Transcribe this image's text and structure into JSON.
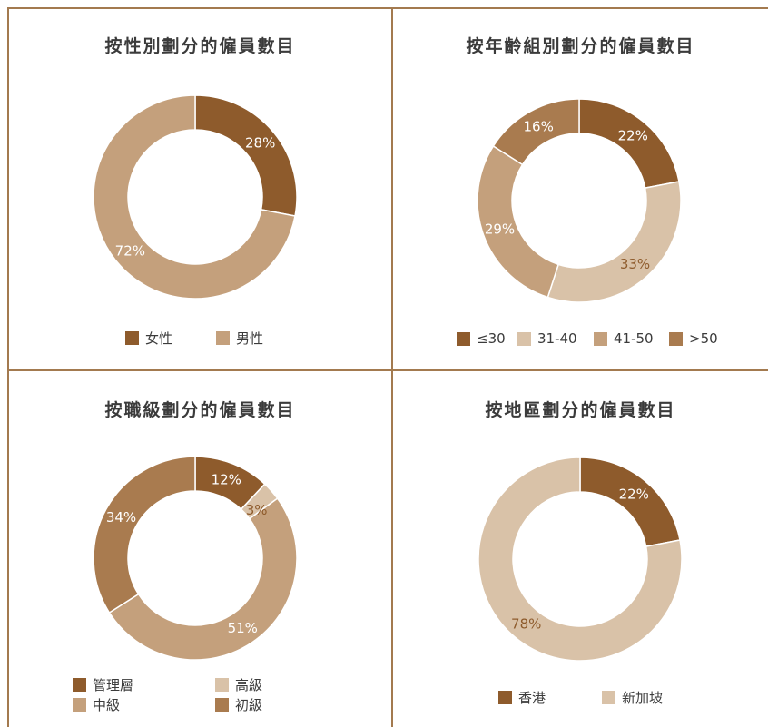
{
  "colors": {
    "frame": "#a37a4f",
    "slice_dark": "#8e5b2c",
    "slice_mid": "#c4a07c",
    "slice_light": "#d9c2a8",
    "slice_brown": "#a97b4f",
    "label_dark": "#8e5b2c",
    "label_light": "#ffffff"
  },
  "chart_data": [
    {
      "type": "pie",
      "title": "按性別劃分的僱員數目",
      "slices": [
        {
          "label": "女性",
          "value": 28,
          "display": "28%",
          "color": "#8e5b2c",
          "label_color": "#ffffff"
        },
        {
          "label": "男性",
          "value": 72,
          "display": "72%",
          "color": "#c4a07c",
          "label_color": "#ffffff"
        }
      ]
    },
    {
      "type": "pie",
      "title": "按年齡組別劃分的僱員數目",
      "slices": [
        {
          "label": "≤30",
          "value": 22,
          "display": "22%",
          "color": "#8e5b2c",
          "label_color": "#ffffff"
        },
        {
          "label": "31-40",
          "value": 33,
          "display": "33%",
          "color": "#d9c2a8",
          "label_color": "#8e5b2c"
        },
        {
          "label": "41-50",
          "value": 29,
          "display": "29%",
          "color": "#c4a07c",
          "label_color": "#ffffff"
        },
        {
          "label": ">50",
          "value": 16,
          "display": "16%",
          "color": "#a97b4f",
          "label_color": "#ffffff"
        }
      ]
    },
    {
      "type": "pie",
      "title": "按職級劃分的僱員數目",
      "slices": [
        {
          "label": "管理層",
          "value": 12,
          "display": "12%",
          "color": "#8e5b2c",
          "label_color": "#ffffff"
        },
        {
          "label": "高級",
          "value": 3,
          "display": "3%",
          "color": "#d9c2a8",
          "label_color": "#8e5b2c"
        },
        {
          "label": "中級",
          "value": 51,
          "display": "51%",
          "color": "#c4a07c",
          "label_color": "#ffffff"
        },
        {
          "label": "初級",
          "value": 34,
          "display": "34%",
          "color": "#a97b4f",
          "label_color": "#ffffff"
        }
      ]
    },
    {
      "type": "pie",
      "title": "按地區劃分的僱員數目",
      "slices": [
        {
          "label": "香港",
          "value": 22,
          "display": "22%",
          "color": "#8e5b2c",
          "label_color": "#ffffff"
        },
        {
          "label": "新加坡",
          "value": 78,
          "display": "78%",
          "color": "#d9c2a8",
          "label_color": "#8e5b2c"
        }
      ]
    }
  ]
}
